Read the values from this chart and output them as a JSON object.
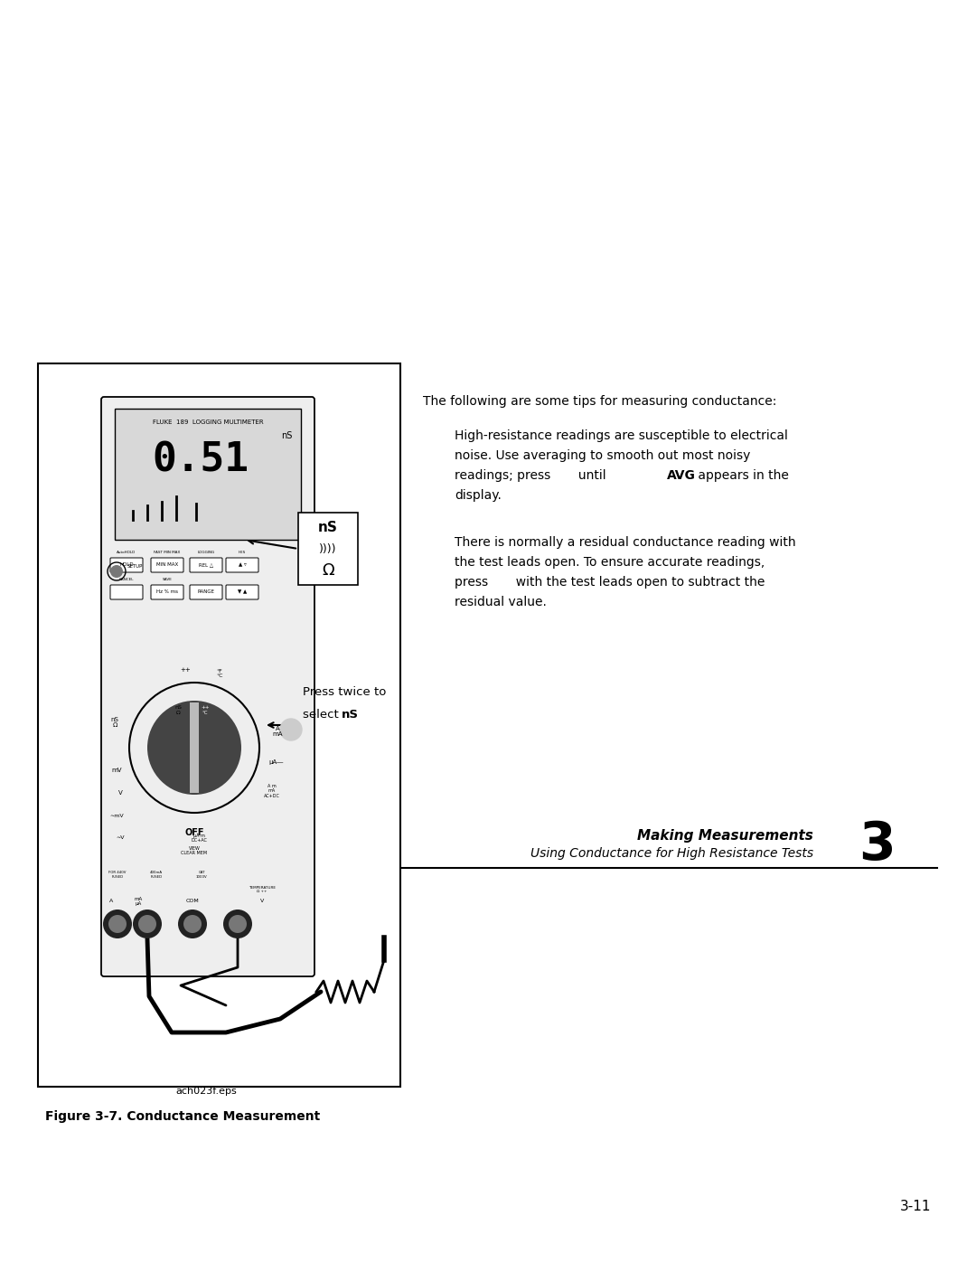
{
  "page_bg": "#ffffff",
  "header_bold_text": "Making Measurements",
  "header_italic_text": "Using Conductance for High Resistance Tests",
  "chapter_number": "3",
  "figure_caption": "Figure 3-7. Conductance Measurement",
  "figure_label": "ach023f.eps",
  "page_number": "3-11",
  "para_intro": "The following are some tips for measuring conductance:",
  "para1_line1": "High-resistance readings are susceptible to electrical",
  "para1_line2": "noise. Use averaging to smooth out most noisy",
  "para1_line3a": "readings; press       until ",
  "para1_line3b": "AVG",
  "para1_line3c": " appears in the",
  "para1_line4": "display.",
  "para2_line1": "There is normally a residual conductance reading with",
  "para2_line2": "the test leads open. To ensure accurate readings,",
  "para2_line3": "press       with the test leads open to subtract the",
  "para2_line4": "residual value.",
  "callout_line1": "nS",
  "callout_line2": "))))",
  "callout_line3": "Ω",
  "press_twice_line1": "Press twice to",
  "press_twice_line2a": "select ",
  "press_twice_line2b": "nS",
  "meter_display": "0.51",
  "meter_ns_unit": "nS",
  "meter_brand": "FLUKE  189  LOGGING MULTIMETER"
}
